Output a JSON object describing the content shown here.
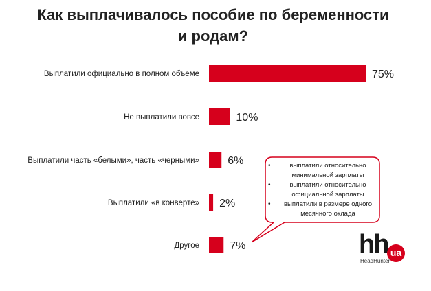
{
  "title_line1": "Как выплачивалось пособие по беременности",
  "title_line2": "и родам?",
  "chart_data": {
    "type": "bar",
    "orientation": "horizontal",
    "categories": [
      "Выплатили официально в полном объеме",
      "Не выплатили вовсе",
      "Выплатили часть «белыми», часть «черными»",
      "Выплатили «в конверте»",
      "Другое"
    ],
    "values": [
      75,
      10,
      6,
      2,
      7
    ],
    "value_labels": [
      "75%",
      "10%",
      "6%",
      "2%",
      "7%"
    ],
    "xlim": [
      0,
      100
    ],
    "grid": false,
    "legend": "none",
    "bar_color": "#d6001c"
  },
  "callout": {
    "items": [
      "выплатили относительно минимальной зарплаты",
      "выплатили относительно официальной зарплаты",
      "выплатили в размере одного месячного оклада"
    ],
    "border_color": "#d6001c"
  },
  "logo": {
    "mark": "hh",
    "badge": "ua",
    "caption": "HeadHunter",
    "color": "#d6001c"
  }
}
